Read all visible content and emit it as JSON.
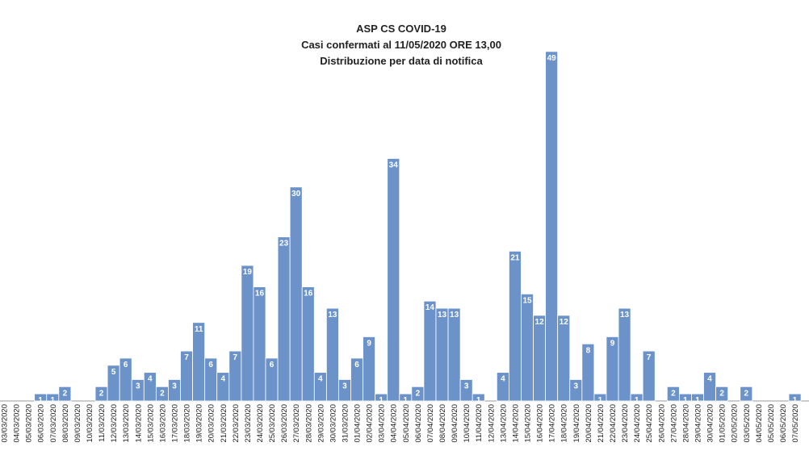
{
  "chart_data": {
    "type": "bar",
    "title": "ASP CS COVID-19",
    "subtitle": [
      "Casi confermati al  11/05/2020 ORE 13,00",
      "Distribuzione per data di notifica"
    ],
    "categories": [
      "03/03/2020",
      "04/03/2020",
      "05/03/2020",
      "06/03/2020",
      "07/03/2020",
      "08/03/2020",
      "09/03/2020",
      "10/03/2020",
      "11/03/2020",
      "12/03/2020",
      "13/03/2020",
      "14/03/2020",
      "15/03/2020",
      "16/03/2020",
      "17/03/2020",
      "18/03/2020",
      "19/03/2020",
      "20/03/2020",
      "21/03/2020",
      "22/03/2020",
      "23/03/2020",
      "24/03/2020",
      "25/03/2020",
      "26/03/2020",
      "27/03/2020",
      "28/03/2020",
      "29/03/2020",
      "30/03/2020",
      "31/03/2020",
      "01/04/2020",
      "02/04/2020",
      "03/04/2020",
      "04/04/2020",
      "05/04/2020",
      "06/04/2020",
      "07/04/2020",
      "08/04/2020",
      "09/04/2020",
      "10/04/2020",
      "11/04/2020",
      "12/04/2020",
      "13/04/2020",
      "14/04/2020",
      "15/04/2020",
      "16/04/2020",
      "17/04/2020",
      "18/04/2020",
      "19/04/2020",
      "20/04/2020",
      "21/04/2020",
      "22/04/2020",
      "23/04/2020",
      "24/04/2020",
      "25/04/2020",
      "26/04/2020",
      "27/04/2020",
      "28/04/2020",
      "29/04/2020",
      "30/04/2020",
      "01/05/2020",
      "02/05/2020",
      "03/05/2020",
      "04/05/2020",
      "05/05/2020",
      "06/05/2020",
      "07/05/2020"
    ],
    "values": [
      0,
      0,
      0,
      1,
      1,
      2,
      0,
      0,
      2,
      5,
      6,
      3,
      4,
      2,
      3,
      7,
      11,
      6,
      4,
      7,
      19,
      16,
      6,
      23,
      30,
      16,
      4,
      13,
      3,
      6,
      9,
      1,
      34,
      1,
      2,
      14,
      13,
      13,
      3,
      1,
      0,
      4,
      21,
      15,
      12,
      49,
      12,
      3,
      8,
      1,
      9,
      13,
      1,
      7,
      0,
      2,
      1,
      1,
      4,
      2,
      0,
      2,
      0,
      0,
      0,
      1
    ],
    "color": "#6b93c9",
    "ylim": [
      0,
      50
    ]
  }
}
